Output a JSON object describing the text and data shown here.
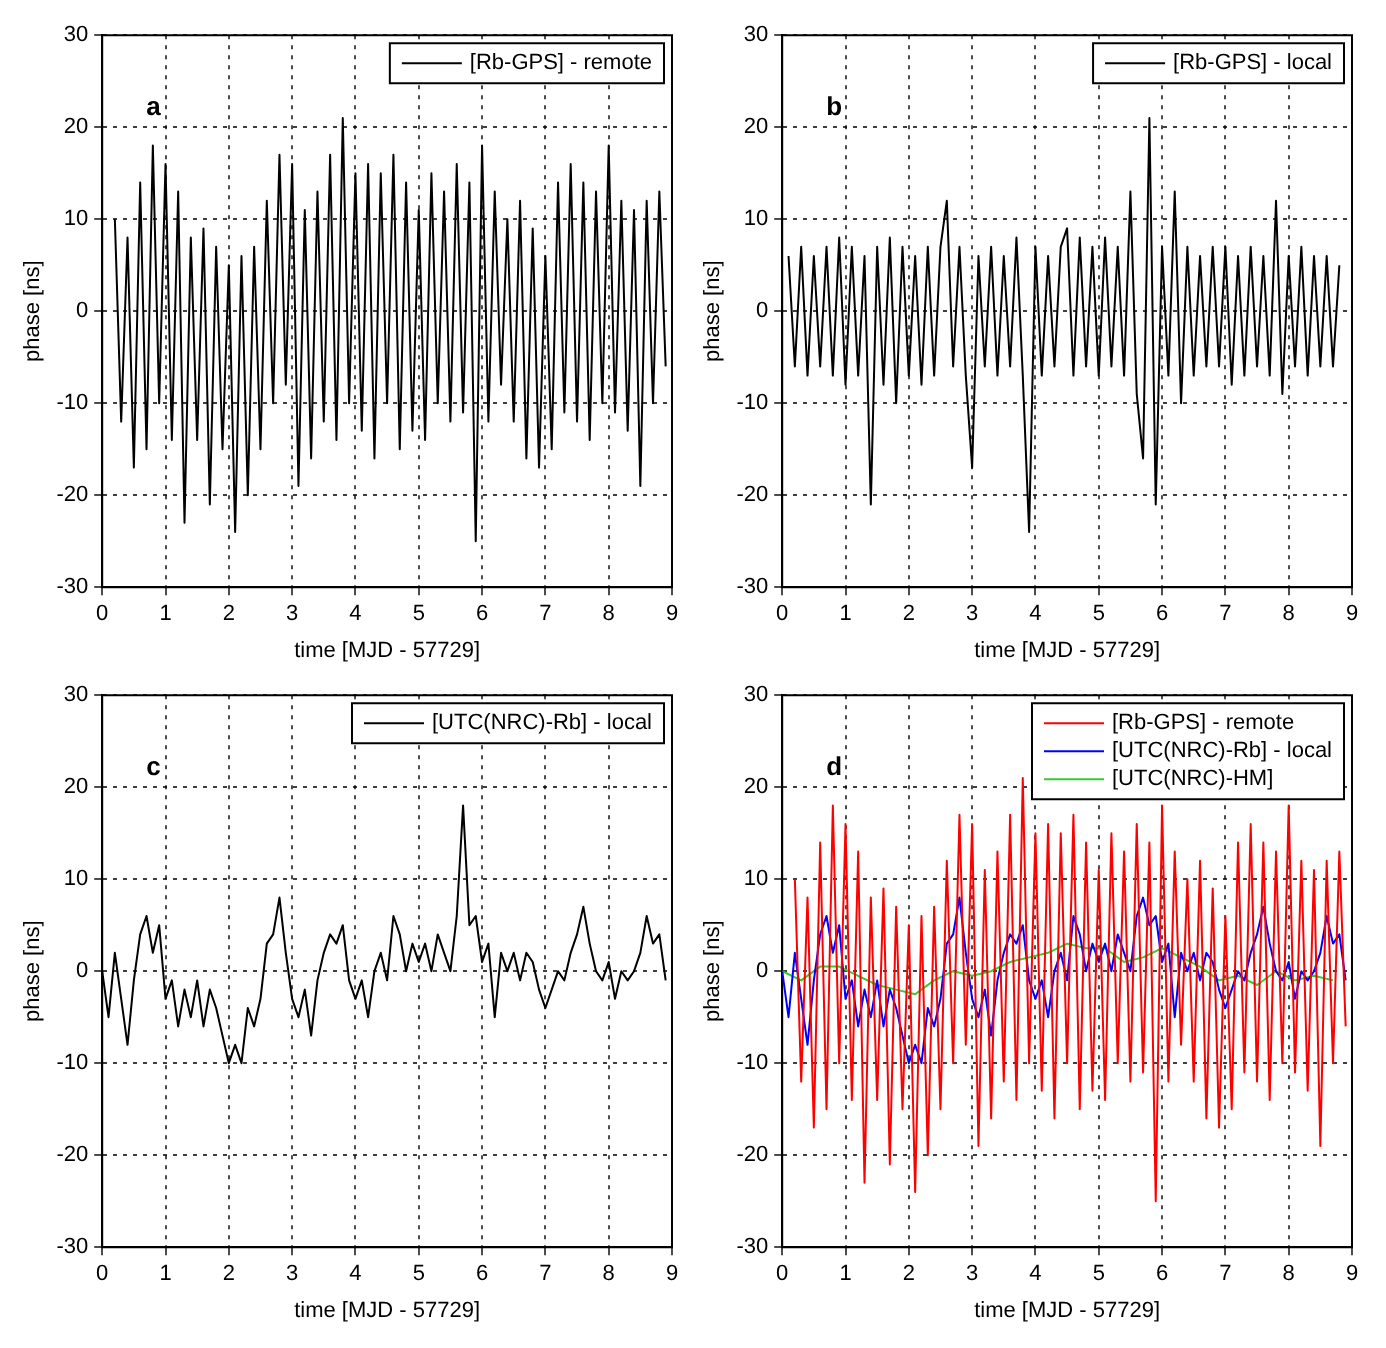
{
  "chart_data": [
    {
      "type": "line",
      "xlabel": "time [MJD - 57729]",
      "ylabel": "phase [ns]",
      "annotations": [
        "a"
      ],
      "legend": "top right",
      "grid": true,
      "xlim": [
        0,
        9
      ],
      "xticks": [
        0,
        1,
        2,
        3,
        4,
        5,
        6,
        7,
        8,
        9
      ],
      "ylim": [
        -30,
        30
      ],
      "yticks": [
        -30,
        -20,
        -10,
        0,
        10,
        20,
        30
      ],
      "x": [
        0.2,
        0.3,
        0.4,
        0.5,
        0.6,
        0.7,
        0.8,
        0.9,
        1.0,
        1.1,
        1.2,
        1.3,
        1.4,
        1.5,
        1.6,
        1.7,
        1.8,
        1.9,
        2.0,
        2.1,
        2.2,
        2.3,
        2.4,
        2.5,
        2.6,
        2.7,
        2.8,
        2.9,
        3.0,
        3.1,
        3.2,
        3.3,
        3.4,
        3.5,
        3.6,
        3.7,
        3.8,
        3.9,
        4.0,
        4.1,
        4.2,
        4.3,
        4.4,
        4.5,
        4.6,
        4.7,
        4.8,
        4.9,
        5.0,
        5.1,
        5.2,
        5.3,
        5.4,
        5.5,
        5.6,
        5.7,
        5.8,
        5.9,
        6.0,
        6.1,
        6.2,
        6.3,
        6.4,
        6.5,
        6.6,
        6.7,
        6.8,
        6.9,
        7.0,
        7.1,
        7.2,
        7.3,
        7.4,
        7.5,
        7.6,
        7.7,
        7.8,
        7.9,
        8.0,
        8.1,
        8.2,
        8.3,
        8.4,
        8.5,
        8.6,
        8.7,
        8.8,
        8.9
      ],
      "series": [
        {
          "name": "[Rb-GPS] - remote",
          "color": "#000000",
          "values": [
            10,
            -12,
            8,
            -17,
            14,
            -15,
            18,
            -10,
            16,
            -14,
            13,
            -23,
            8,
            -14,
            9,
            -21,
            7,
            -15,
            5,
            -24,
            6,
            -20,
            7,
            -15,
            12,
            -10,
            17,
            -8,
            16,
            -19,
            11,
            -16,
            13,
            -12,
            17,
            -14,
            21,
            -10,
            15,
            -13,
            16,
            -16,
            15,
            -10,
            17,
            -15,
            14,
            -13,
            11,
            -14,
            15,
            -10,
            13,
            -12,
            16,
            -11,
            14,
            -25,
            18,
            -12,
            13,
            -8,
            10,
            -12,
            12,
            -16,
            9,
            -17,
            6,
            -15,
            14,
            -11,
            16,
            -12,
            14,
            -14,
            13,
            -10,
            18,
            -11,
            12,
            -13,
            11,
            -19,
            12,
            -10,
            13,
            -6
          ]
        }
      ]
    },
    {
      "type": "line",
      "xlabel": "time [MJD - 57729]",
      "ylabel": "phase [ns]",
      "annotations": [
        "b"
      ],
      "legend": "top right",
      "grid": true,
      "xlim": [
        0,
        9
      ],
      "xticks": [
        0,
        1,
        2,
        3,
        4,
        5,
        6,
        7,
        8,
        9
      ],
      "ylim": [
        -30,
        30
      ],
      "yticks": [
        -30,
        -20,
        -10,
        0,
        10,
        20,
        30
      ],
      "x": [
        0.1,
        0.2,
        0.3,
        0.4,
        0.5,
        0.6,
        0.7,
        0.8,
        0.9,
        1.0,
        1.1,
        1.2,
        1.3,
        1.4,
        1.5,
        1.6,
        1.7,
        1.8,
        1.9,
        2.0,
        2.1,
        2.2,
        2.3,
        2.4,
        2.5,
        2.6,
        2.7,
        2.8,
        2.9,
        3.0,
        3.1,
        3.2,
        3.3,
        3.4,
        3.5,
        3.6,
        3.7,
        3.8,
        3.9,
        4.0,
        4.1,
        4.2,
        4.3,
        4.4,
        4.5,
        4.6,
        4.7,
        4.8,
        4.9,
        5.0,
        5.1,
        5.2,
        5.3,
        5.4,
        5.5,
        5.6,
        5.7,
        5.8,
        5.9,
        6.0,
        6.1,
        6.2,
        6.3,
        6.4,
        6.5,
        6.6,
        6.7,
        6.8,
        6.9,
        7.0,
        7.1,
        7.2,
        7.3,
        7.4,
        7.5,
        7.6,
        7.7,
        7.8,
        7.9,
        8.0,
        8.1,
        8.2,
        8.3,
        8.4,
        8.5,
        8.6,
        8.7,
        8.8
      ],
      "series": [
        {
          "name": "[Rb-GPS] - local",
          "color": "#000000",
          "values": [
            6,
            -6,
            7,
            -7,
            6,
            -6,
            7,
            -7,
            8,
            -8,
            7,
            -7,
            6,
            -21,
            7,
            -8,
            8,
            -10,
            7,
            -7,
            6,
            -8,
            7,
            -7,
            7,
            12,
            -6,
            7,
            -7,
            -17,
            6,
            -6,
            7,
            -7,
            6,
            -6,
            8,
            -7,
            -24,
            7,
            -7,
            6,
            -6,
            7,
            9,
            -7,
            8,
            -6,
            7,
            -7,
            8,
            -6,
            7,
            -7,
            13,
            -9,
            -16,
            21,
            -21,
            7,
            -7,
            13,
            -10,
            7,
            -7,
            6,
            -6,
            7,
            -6,
            7,
            -8,
            6,
            -7,
            7,
            -6,
            6,
            -7,
            12,
            -9,
            6,
            -6,
            7,
            -7,
            6,
            -6,
            6,
            -6,
            5
          ]
        }
      ]
    },
    {
      "type": "line",
      "xlabel": "time [MJD - 57729]",
      "ylabel": "phase [ns]",
      "annotations": [
        "c"
      ],
      "legend": "top right",
      "grid": true,
      "xlim": [
        0,
        9
      ],
      "xticks": [
        0,
        1,
        2,
        3,
        4,
        5,
        6,
        7,
        8,
        9
      ],
      "ylim": [
        -30,
        30
      ],
      "yticks": [
        -30,
        -20,
        -10,
        0,
        10,
        20,
        30
      ],
      "x": [
        0.0,
        0.1,
        0.2,
        0.3,
        0.4,
        0.5,
        0.6,
        0.7,
        0.8,
        0.9,
        1.0,
        1.1,
        1.2,
        1.3,
        1.4,
        1.5,
        1.6,
        1.7,
        1.8,
        1.9,
        2.0,
        2.1,
        2.2,
        2.3,
        2.4,
        2.5,
        2.6,
        2.7,
        2.8,
        2.9,
        3.0,
        3.1,
        3.2,
        3.3,
        3.4,
        3.5,
        3.6,
        3.7,
        3.8,
        3.9,
        4.0,
        4.1,
        4.2,
        4.3,
        4.4,
        4.5,
        4.6,
        4.7,
        4.8,
        4.9,
        5.0,
        5.1,
        5.2,
        5.3,
        5.4,
        5.5,
        5.6,
        5.7,
        5.8,
        5.9,
        6.0,
        6.1,
        6.2,
        6.3,
        6.4,
        6.5,
        6.6,
        6.7,
        6.8,
        6.9,
        7.0,
        7.1,
        7.2,
        7.3,
        7.4,
        7.5,
        7.6,
        7.7,
        7.8,
        7.9,
        8.0,
        8.1,
        8.2,
        8.3,
        8.4,
        8.5,
        8.6,
        8.7,
        8.8,
        8.9
      ],
      "series": [
        {
          "name": "[UTC(NRC)-Rb] - local",
          "color": "#000000",
          "values": [
            0,
            -5,
            2,
            -3,
            -8,
            -1,
            4,
            6,
            2,
            5,
            -3,
            -1,
            -6,
            -2,
            -5,
            -1,
            -6,
            -2,
            -4,
            -7,
            -10,
            -8,
            -10,
            -4,
            -6,
            -3,
            3,
            4,
            8,
            2,
            -3,
            -5,
            -2,
            -7,
            -1,
            2,
            4,
            3,
            5,
            -1,
            -3,
            -1,
            -5,
            0,
            2,
            -1,
            6,
            4,
            0,
            3,
            1,
            3,
            0,
            4,
            2,
            0,
            6,
            18,
            5,
            6,
            1,
            3,
            -5,
            2,
            0,
            2,
            -1,
            2,
            1,
            -2,
            -4,
            -2,
            0,
            -1,
            2,
            4,
            7,
            3,
            0,
            -1,
            1,
            -3,
            0,
            -1,
            0,
            2,
            6,
            3,
            4,
            -1
          ]
        }
      ]
    },
    {
      "type": "line",
      "xlabel": "time [MJD - 57729]",
      "ylabel": "phase [ns]",
      "annotations": [
        "d"
      ],
      "legend": "top right",
      "grid": true,
      "xlim": [
        0,
        9
      ],
      "xticks": [
        0,
        1,
        2,
        3,
        4,
        5,
        6,
        7,
        8,
        9
      ],
      "ylim": [
        -30,
        30
      ],
      "yticks": [
        -30,
        -20,
        -10,
        0,
        10,
        20,
        30
      ],
      "series": [
        {
          "name": "[Rb-GPS] - remote",
          "color": "#ff0000",
          "x": [
            0.2,
            0.3,
            0.4,
            0.5,
            0.6,
            0.7,
            0.8,
            0.9,
            1.0,
            1.1,
            1.2,
            1.3,
            1.4,
            1.5,
            1.6,
            1.7,
            1.8,
            1.9,
            2.0,
            2.1,
            2.2,
            2.3,
            2.4,
            2.5,
            2.6,
            2.7,
            2.8,
            2.9,
            3.0,
            3.1,
            3.2,
            3.3,
            3.4,
            3.5,
            3.6,
            3.7,
            3.8,
            3.9,
            4.0,
            4.1,
            4.2,
            4.3,
            4.4,
            4.5,
            4.6,
            4.7,
            4.8,
            4.9,
            5.0,
            5.1,
            5.2,
            5.3,
            5.4,
            5.5,
            5.6,
            5.7,
            5.8,
            5.9,
            6.0,
            6.1,
            6.2,
            6.3,
            6.4,
            6.5,
            6.6,
            6.7,
            6.8,
            6.9,
            7.0,
            7.1,
            7.2,
            7.3,
            7.4,
            7.5,
            7.6,
            7.7,
            7.8,
            7.9,
            8.0,
            8.1,
            8.2,
            8.3,
            8.4,
            8.5,
            8.6,
            8.7,
            8.8,
            8.9
          ],
          "values": [
            10,
            -12,
            8,
            -17,
            14,
            -15,
            18,
            -10,
            16,
            -14,
            13,
            -23,
            8,
            -14,
            9,
            -21,
            7,
            -15,
            5,
            -24,
            6,
            -20,
            7,
            -15,
            12,
            -10,
            17,
            -8,
            16,
            -19,
            11,
            -16,
            13,
            -12,
            17,
            -14,
            21,
            -10,
            15,
            -13,
            16,
            -16,
            15,
            -10,
            17,
            -15,
            14,
            -13,
            11,
            -14,
            15,
            -10,
            13,
            -12,
            16,
            -11,
            14,
            -25,
            18,
            -12,
            13,
            -8,
            10,
            -12,
            12,
            -16,
            9,
            -17,
            6,
            -15,
            14,
            -11,
            16,
            -12,
            14,
            -14,
            13,
            -10,
            18,
            -11,
            12,
            -13,
            11,
            -19,
            12,
            -10,
            13,
            -6
          ]
        },
        {
          "name": "[UTC(NRC)-Rb] - local",
          "color": "#0000ff",
          "x": [
            0.0,
            0.1,
            0.2,
            0.3,
            0.4,
            0.5,
            0.6,
            0.7,
            0.8,
            0.9,
            1.0,
            1.1,
            1.2,
            1.3,
            1.4,
            1.5,
            1.6,
            1.7,
            1.8,
            1.9,
            2.0,
            2.1,
            2.2,
            2.3,
            2.4,
            2.5,
            2.6,
            2.7,
            2.8,
            2.9,
            3.0,
            3.1,
            3.2,
            3.3,
            3.4,
            3.5,
            3.6,
            3.7,
            3.8,
            3.9,
            4.0,
            4.1,
            4.2,
            4.3,
            4.4,
            4.5,
            4.6,
            4.7,
            4.8,
            4.9,
            5.0,
            5.1,
            5.2,
            5.3,
            5.4,
            5.5,
            5.6,
            5.7,
            5.8,
            5.9,
            6.0,
            6.1,
            6.2,
            6.3,
            6.4,
            6.5,
            6.6,
            6.7,
            6.8,
            6.9,
            7.0,
            7.1,
            7.2,
            7.3,
            7.4,
            7.5,
            7.6,
            7.7,
            7.8,
            7.9,
            8.0,
            8.1,
            8.2,
            8.3,
            8.4,
            8.5,
            8.6,
            8.7,
            8.8,
            8.9
          ],
          "values": [
            0,
            -5,
            2,
            -3,
            -8,
            -1,
            4,
            6,
            2,
            5,
            -3,
            -1,
            -6,
            -2,
            -5,
            -1,
            -6,
            -2,
            -4,
            -7,
            -10,
            -8,
            -10,
            -4,
            -6,
            -3,
            3,
            4,
            8,
            2,
            -3,
            -5,
            -2,
            -7,
            -1,
            2,
            4,
            3,
            5,
            -1,
            -3,
            -1,
            -5,
            0,
            2,
            -1,
            6,
            4,
            0,
            3,
            1,
            3,
            0,
            4,
            2,
            0,
            6,
            8,
            5,
            6,
            1,
            3,
            -5,
            2,
            0,
            2,
            -1,
            2,
            1,
            -2,
            -4,
            -2,
            0,
            -1,
            2,
            4,
            7,
            3,
            0,
            -1,
            1,
            -3,
            0,
            -1,
            0,
            2,
            6,
            3,
            4,
            -1
          ]
        },
        {
          "name": "[UTC(NRC)-HM]",
          "color": "#33cc33",
          "x": [
            0,
            0.3,
            0.6,
            0.9,
            1.2,
            1.5,
            1.8,
            2.1,
            2.4,
            2.7,
            3.0,
            3.3,
            3.6,
            3.9,
            4.2,
            4.5,
            4.8,
            5.1,
            5.4,
            5.7,
            6.0,
            6.3,
            6.6,
            6.9,
            7.2,
            7.5,
            7.8,
            8.1,
            8.4,
            8.7
          ],
          "values": [
            0,
            -1,
            0.5,
            0.5,
            -0.5,
            -1.5,
            -2,
            -2.5,
            -1,
            0,
            -0.5,
            0,
            1,
            1.5,
            2,
            3,
            2.5,
            2.5,
            1,
            1.5,
            2.5,
            1.5,
            0.5,
            -1,
            -0.5,
            -1.5,
            0,
            -1,
            -0.5,
            -1
          ]
        }
      ]
    }
  ]
}
